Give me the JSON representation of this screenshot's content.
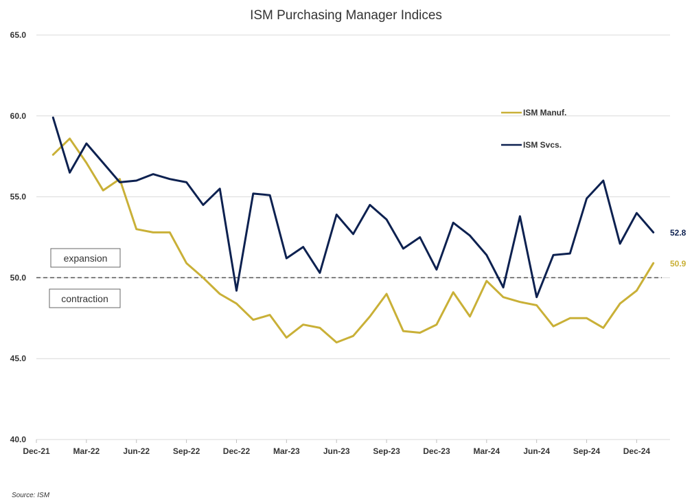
{
  "chart_data": {
    "type": "line",
    "title": "ISM Purchasing Manager Indices",
    "source": "Source: ISM",
    "ylim": [
      40,
      65
    ],
    "y_ticks": [
      "40.0",
      "45.0",
      "50.0",
      "55.0",
      "60.0",
      "65.0"
    ],
    "y_tick_values": [
      40,
      45,
      50,
      55,
      60,
      65
    ],
    "x_tick_labels": [
      "Dec-21",
      "Mar-22",
      "Jun-22",
      "Sep-22",
      "Dec-22",
      "Mar-23",
      "Jun-23",
      "Sep-23",
      "Dec-23",
      "Mar-24",
      "Jun-24",
      "Sep-24",
      "Dec-24"
    ],
    "x_tick_dates": [
      "2021-12",
      "2022-03",
      "2022-06",
      "2022-09",
      "2022-12",
      "2023-03",
      "2023-06",
      "2023-09",
      "2023-12",
      "2024-03",
      "2024-06",
      "2024-09",
      "2024-12"
    ],
    "x": [
      "2022-01",
      "2022-02",
      "2022-03",
      "2022-04",
      "2022-05",
      "2022-06",
      "2022-07",
      "2022-08",
      "2022-09",
      "2022-10",
      "2022-11",
      "2022-12",
      "2023-01",
      "2023-02",
      "2023-03",
      "2023-04",
      "2023-05",
      "2023-06",
      "2023-07",
      "2023-08",
      "2023-09",
      "2023-10",
      "2023-11",
      "2023-12",
      "2024-01",
      "2024-02",
      "2024-03",
      "2024-04",
      "2024-05",
      "2024-06",
      "2024-07",
      "2024-08",
      "2024-09",
      "2024-10",
      "2024-11",
      "2024-12",
      "2025-01"
    ],
    "series": [
      {
        "name": "ISM Manuf.",
        "color": "#c9b037",
        "end_label": "50.9",
        "values": [
          57.6,
          58.6,
          57.1,
          55.4,
          56.1,
          53.0,
          52.8,
          52.8,
          50.9,
          50.0,
          49.0,
          48.4,
          47.4,
          47.7,
          46.3,
          47.1,
          46.9,
          46.0,
          46.4,
          47.6,
          49.0,
          46.7,
          46.6,
          47.1,
          49.1,
          47.6,
          49.8,
          48.8,
          48.5,
          48.3,
          47.0,
          47.5,
          47.5,
          46.9,
          48.4,
          49.2,
          50.9
        ]
      },
      {
        "name": "ISM Svcs.",
        "color": "#0d2150",
        "end_label": "52.8",
        "values": [
          59.9,
          56.5,
          58.3,
          57.1,
          55.9,
          56.0,
          56.4,
          56.1,
          55.9,
          54.5,
          55.5,
          49.2,
          55.2,
          55.1,
          51.2,
          51.9,
          50.3,
          53.9,
          52.7,
          54.5,
          53.6,
          51.8,
          52.5,
          50.5,
          53.4,
          52.6,
          51.4,
          49.4,
          53.8,
          48.8,
          51.4,
          51.5,
          54.9,
          56.0,
          52.1,
          54.0,
          52.8
        ]
      }
    ],
    "reference_line": {
      "value": 50.0,
      "style": "dashed"
    },
    "annotations": {
      "above": "expansion",
      "below": "contraction"
    },
    "grid": true,
    "legend_position": "top-right"
  }
}
